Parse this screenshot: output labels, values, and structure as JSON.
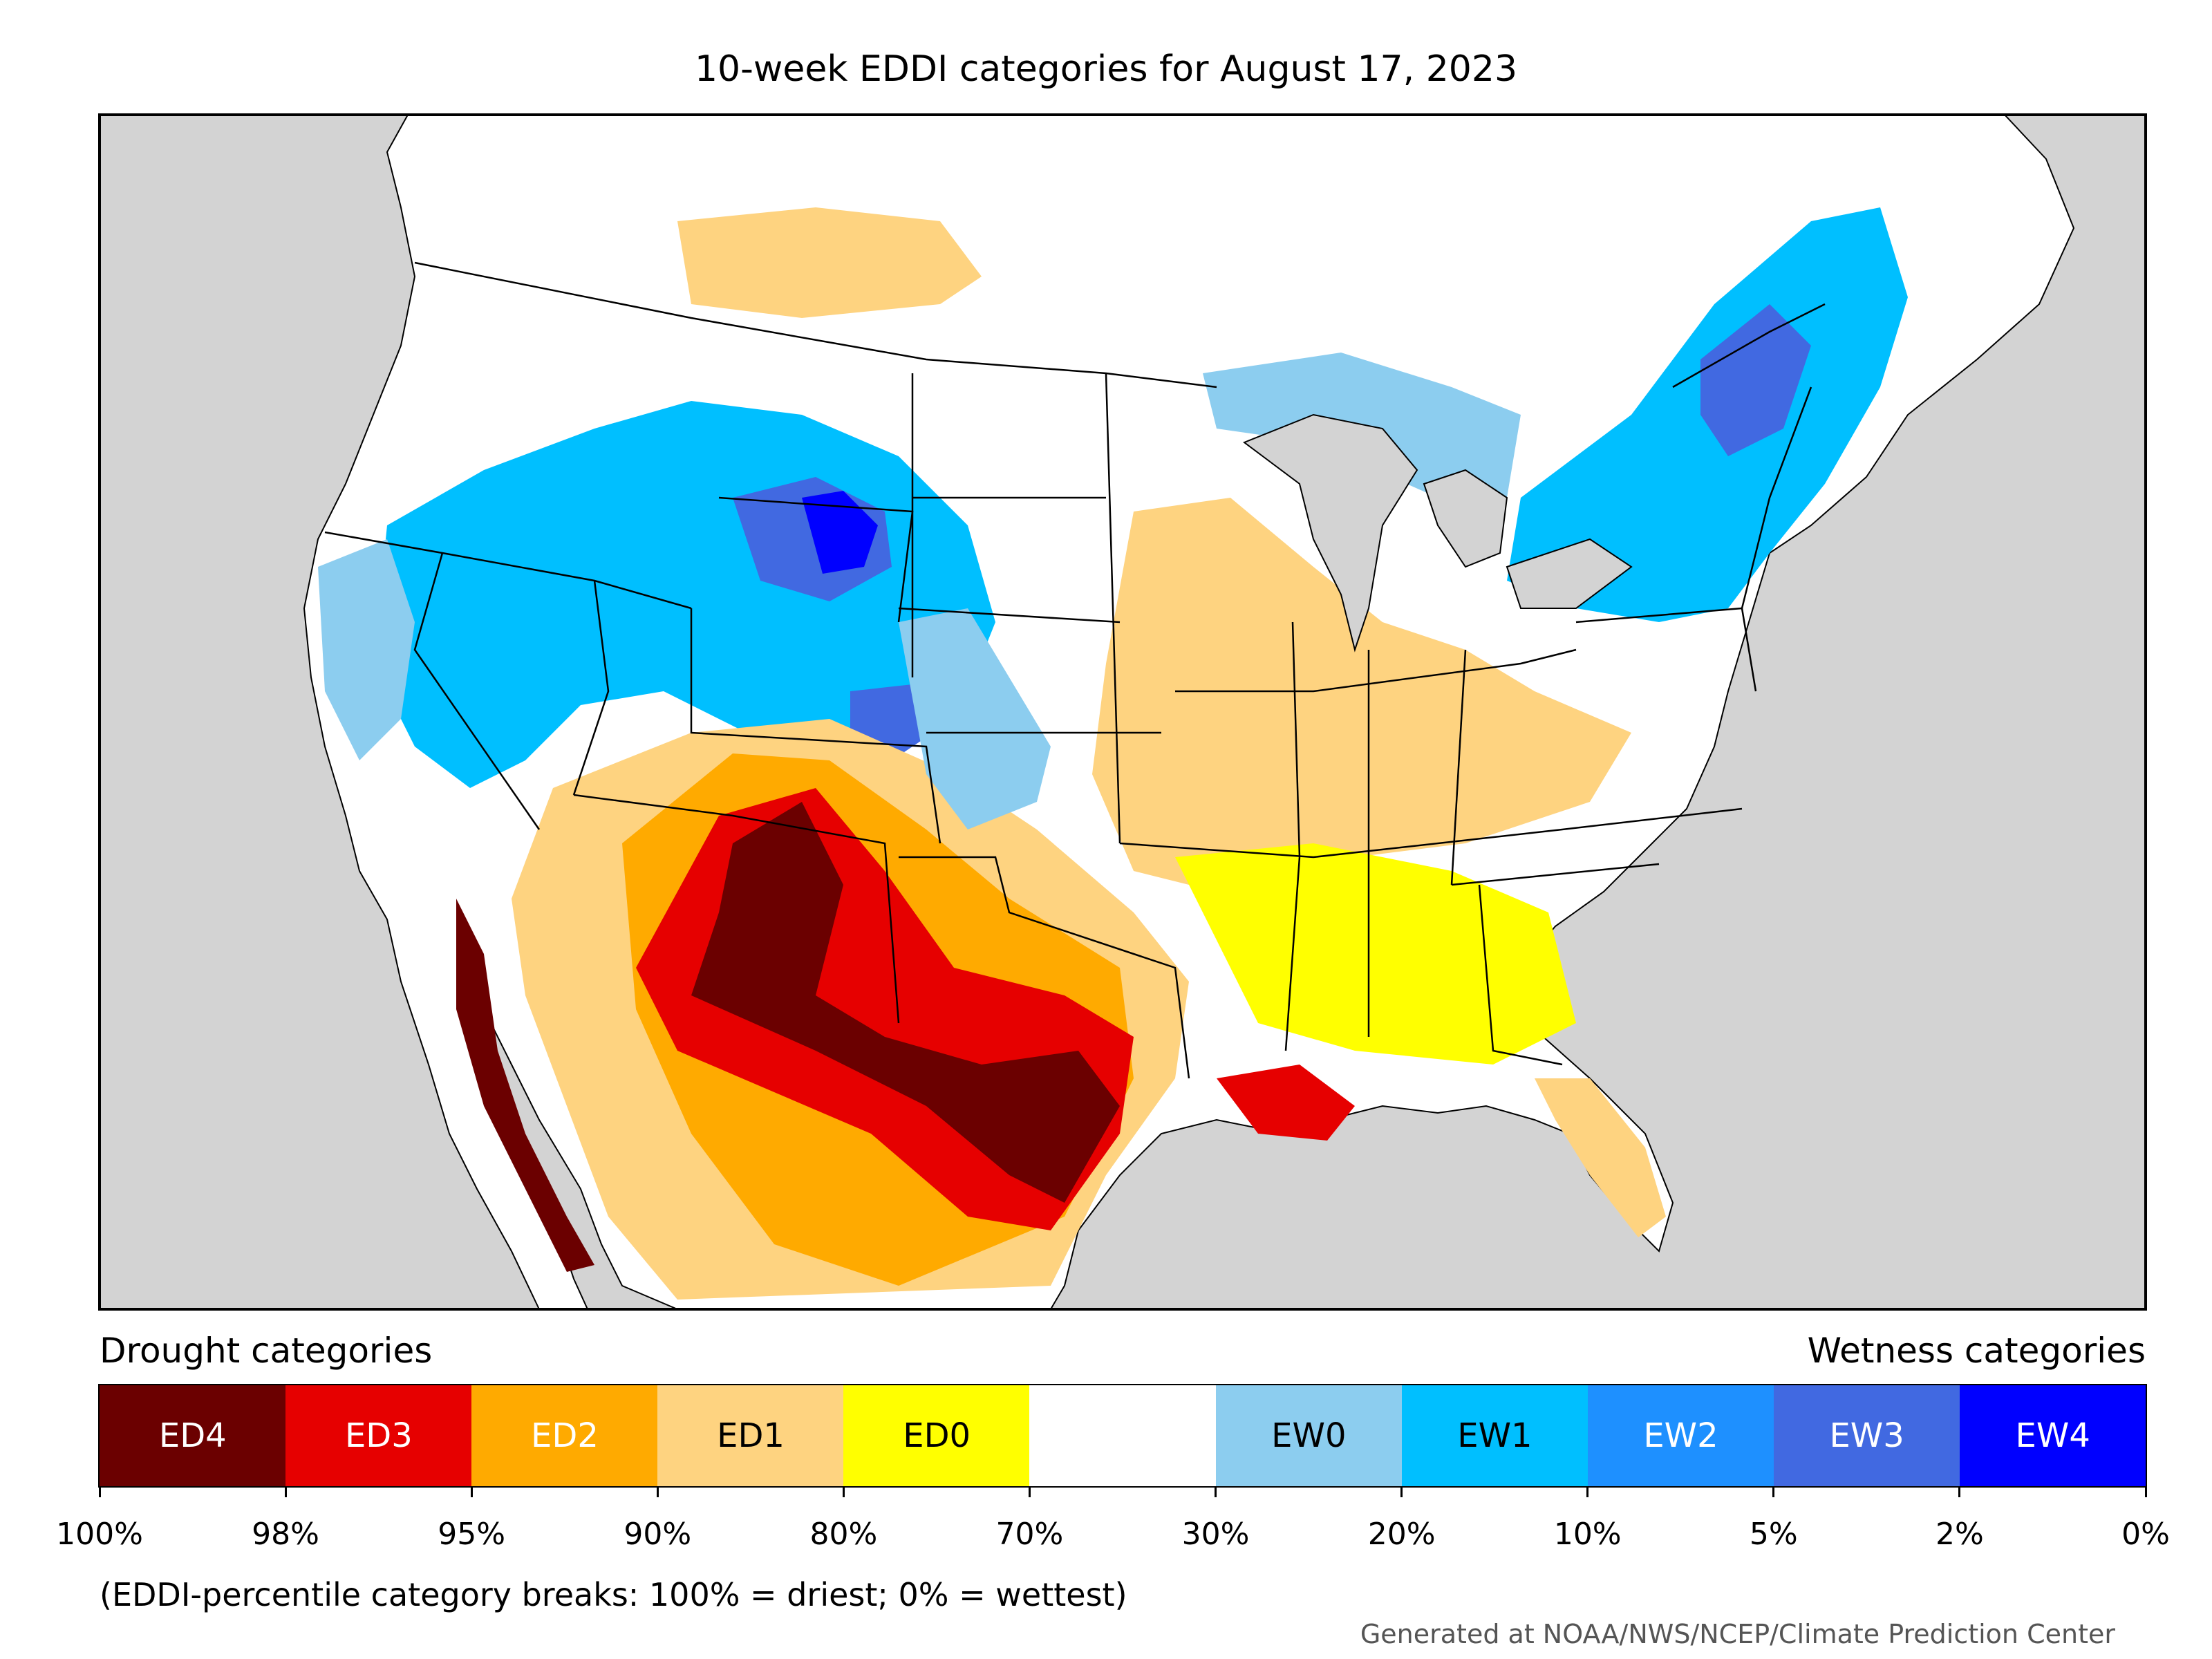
{
  "title": "10-week EDDI categories for August 17, 2023",
  "legend": {
    "drought_heading": "Drought categories",
    "wetness_heading": "Wetness categories",
    "categories": [
      {
        "label": "ED4",
        "color": "#6b0000",
        "text_color": "#ffffff"
      },
      {
        "label": "ED3",
        "color": "#e60000",
        "text_color": "#ffffff"
      },
      {
        "label": "ED2",
        "color": "#ffaa00",
        "text_color": "#ffffff"
      },
      {
        "label": "ED1",
        "color": "#fed380",
        "text_color": "#000000"
      },
      {
        "label": "ED0",
        "color": "#ffff00",
        "text_color": "#000000"
      },
      {
        "label": "",
        "color": "#ffffff",
        "text_color": "#000000"
      },
      {
        "label": "EW0",
        "color": "#8ccdef",
        "text_color": "#000000"
      },
      {
        "label": "EW1",
        "color": "#00bfff",
        "text_color": "#000000"
      },
      {
        "label": "EW2",
        "color": "#1e90ff",
        "text_color": "#ffffff"
      },
      {
        "label": "EW3",
        "color": "#4169e1",
        "text_color": "#ffffff"
      },
      {
        "label": "EW4",
        "color": "#0000ff",
        "text_color": "#ffffff"
      }
    ],
    "breaks": [
      "100%",
      "98%",
      "95%",
      "90%",
      "80%",
      "70%",
      "30%",
      "20%",
      "10%",
      "5%",
      "2%",
      "0%"
    ],
    "note": "(EDDI-percentile category breaks: 100% = driest; 0% = wettest)"
  },
  "credit": "Generated at NOAA/NWS/NCEP/Climate Prediction Center",
  "map_colors": {
    "ocean": "#d3d3d3",
    "land": "#ffffff",
    "border": "#000000"
  }
}
